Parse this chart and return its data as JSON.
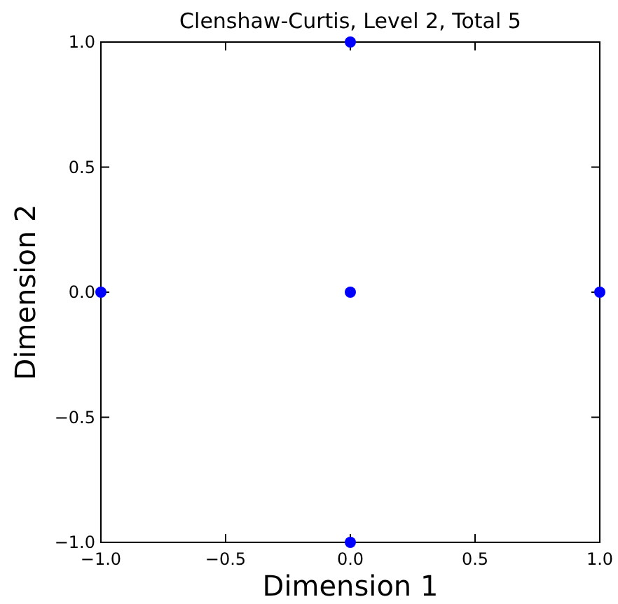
{
  "chart_data": {
    "type": "scatter",
    "title": "Clenshaw-Curtis, Level 2, Total 5",
    "xlabel": "Dimension 1",
    "ylabel": "Dimension 2",
    "x": [
      0,
      -1,
      0,
      1,
      0
    ],
    "series": [
      {
        "color": "#0000ff",
        "values": [
          1,
          0,
          0,
          0,
          -1
        ]
      }
    ],
    "marker": "circle",
    "xlim": [
      -1,
      1
    ],
    "ylim": [
      -1,
      1
    ],
    "xticks": [
      {
        "value": -1,
        "label": "−1.0"
      },
      {
        "value": -0.5,
        "label": "−0.5"
      },
      {
        "value": 0,
        "label": "0.0"
      },
      {
        "value": 0.5,
        "label": "0.5"
      },
      {
        "value": 1,
        "label": "1.0"
      }
    ],
    "yticks": [
      {
        "value": -1,
        "label": "−1.0"
      },
      {
        "value": -0.5,
        "label": "−0.5"
      },
      {
        "value": 0,
        "label": "0.0"
      },
      {
        "value": 0.5,
        "label": "0.5"
      },
      {
        "value": 1,
        "label": "1.0"
      }
    ]
  }
}
